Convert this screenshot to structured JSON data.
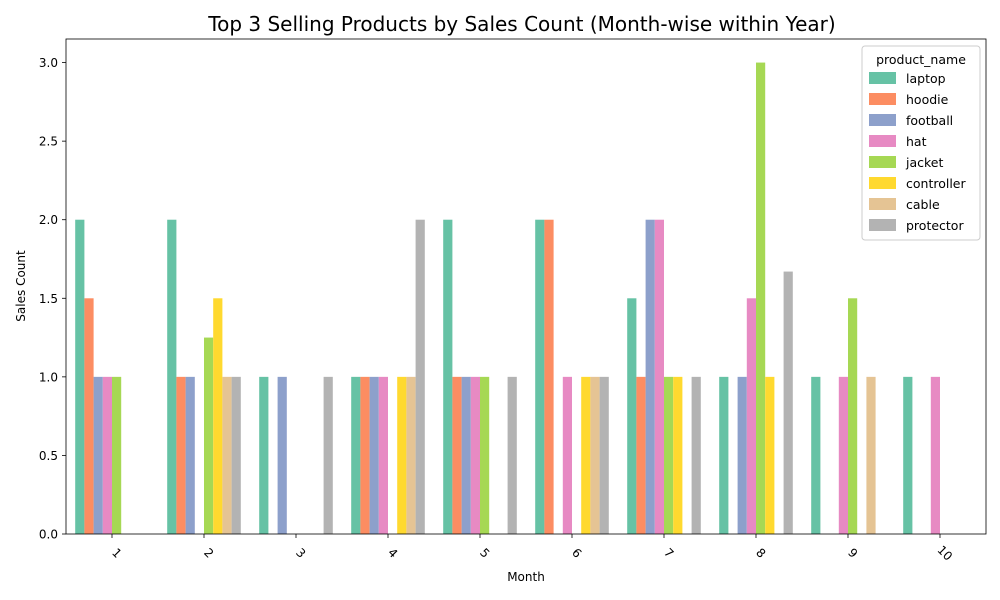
{
  "chart_data": {
    "type": "bar",
    "title": "Top 3 Selling Products by Sales Count (Month-wise within Year)",
    "xlabel": "Month",
    "ylabel": "Sales Count",
    "categories": [
      "1",
      "2",
      "3",
      "4",
      "5",
      "6",
      "7",
      "8",
      "9",
      "10"
    ],
    "ylim": [
      0,
      3.15
    ],
    "yticks": [
      "0.0",
      "0.5",
      "1.0",
      "1.5",
      "2.0",
      "2.5",
      "3.0"
    ],
    "grid": false,
    "legend_title": "product_name",
    "legend_position": "top-right",
    "series": [
      {
        "name": "laptop",
        "color": "#66c2a5",
        "values": [
          2,
          2,
          1,
          1,
          2,
          2,
          1.5,
          1,
          1,
          1
        ]
      },
      {
        "name": "hoodie",
        "color": "#fc8d62",
        "values": [
          1.5,
          1,
          null,
          1,
          1,
          2,
          1,
          null,
          null,
          null
        ]
      },
      {
        "name": "football",
        "color": "#8da0cb",
        "values": [
          1,
          1,
          1,
          1,
          1,
          null,
          2,
          1,
          null,
          null
        ]
      },
      {
        "name": "hat",
        "color": "#e78ac3",
        "values": [
          1,
          null,
          null,
          1,
          1,
          1,
          2,
          1.5,
          1,
          1
        ]
      },
      {
        "name": "jacket",
        "color": "#a6d854",
        "values": [
          1,
          1.25,
          null,
          null,
          1,
          null,
          1,
          3,
          1.5,
          null
        ]
      },
      {
        "name": "controller",
        "color": "#ffd92f",
        "values": [
          null,
          1.5,
          null,
          1,
          null,
          1,
          1,
          1,
          null,
          null
        ]
      },
      {
        "name": "cable",
        "color": "#e5c494",
        "values": [
          null,
          1,
          null,
          1,
          null,
          1,
          null,
          null,
          1,
          null
        ]
      },
      {
        "name": "protector",
        "color": "#b3b3b3",
        "values": [
          null,
          1,
          1,
          2,
          1,
          1,
          1,
          1.67,
          null,
          null
        ]
      }
    ]
  }
}
